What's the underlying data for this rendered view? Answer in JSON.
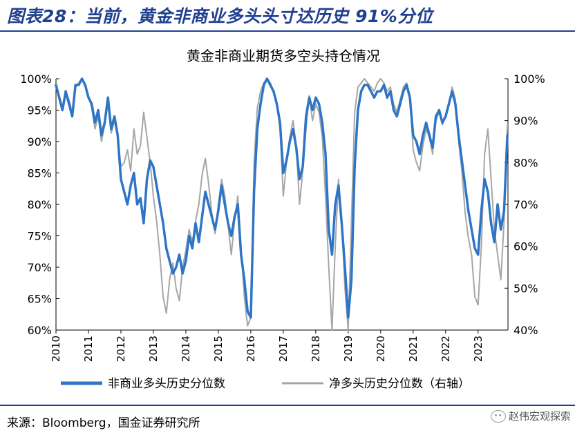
{
  "figure": {
    "title": "图表28：当前，黄金非商业多头头寸达历史 91%分位",
    "source": "来源：Bloomberg，国金证券研究所",
    "watermark": "赵伟宏观探索",
    "watermark_icon": "wechat-icon"
  },
  "chart_data": {
    "type": "line",
    "title": "黄金非商业期货多空头持仓情况",
    "xlabel": "",
    "ylabel": "",
    "x_ticks": [
      "2010",
      "2011",
      "2012",
      "2013",
      "2014",
      "2015",
      "2016",
      "2017",
      "2018",
      "2019",
      "2020",
      "2021",
      "2022",
      "2023"
    ],
    "xlim": [
      2010.0,
      2023.92
    ],
    "y_left": {
      "lim": [
        0.6,
        1.0
      ],
      "ticks": [
        "60%",
        "65%",
        "70%",
        "75%",
        "80%",
        "85%",
        "90%",
        "95%",
        "100%"
      ]
    },
    "y_right": {
      "lim": [
        0.4,
        1.0
      ],
      "ticks": [
        "40%",
        "50%",
        "60%",
        "70%",
        "80%",
        "90%",
        "100%"
      ]
    },
    "grid": false,
    "legend_position": "bottom",
    "series": [
      {
        "name": "非商业多头历史分位数",
        "axis": "left",
        "color": "#2e75c6",
        "x": [
          2010.0,
          2010.1,
          2010.2,
          2010.3,
          2010.4,
          2010.5,
          2010.6,
          2010.7,
          2010.8,
          2010.9,
          2011.0,
          2011.1,
          2011.2,
          2011.3,
          2011.4,
          2011.5,
          2011.6,
          2011.7,
          2011.8,
          2011.9,
          2012.0,
          2012.1,
          2012.2,
          2012.3,
          2012.4,
          2012.5,
          2012.6,
          2012.7,
          2012.8,
          2012.9,
          2013.0,
          2013.1,
          2013.2,
          2013.3,
          2013.4,
          2013.5,
          2013.6,
          2013.7,
          2013.8,
          2013.9,
          2014.0,
          2014.1,
          2014.2,
          2014.3,
          2014.4,
          2014.5,
          2014.6,
          2014.7,
          2014.8,
          2014.9,
          2015.0,
          2015.1,
          2015.2,
          2015.3,
          2015.4,
          2015.5,
          2015.6,
          2015.7,
          2015.8,
          2015.9,
          2016.0,
          2016.1,
          2016.2,
          2016.3,
          2016.4,
          2016.5,
          2016.6,
          2016.7,
          2016.8,
          2016.9,
          2017.0,
          2017.1,
          2017.2,
          2017.3,
          2017.4,
          2017.5,
          2017.6,
          2017.7,
          2017.8,
          2017.9,
          2018.0,
          2018.1,
          2018.2,
          2018.3,
          2018.4,
          2018.5,
          2018.6,
          2018.7,
          2018.8,
          2018.9,
          2019.0,
          2019.1,
          2019.2,
          2019.3,
          2019.4,
          2019.5,
          2019.6,
          2019.7,
          2019.8,
          2019.9,
          2020.0,
          2020.1,
          2020.2,
          2020.3,
          2020.4,
          2020.5,
          2020.6,
          2020.7,
          2020.8,
          2020.9,
          2021.0,
          2021.1,
          2021.2,
          2021.3,
          2021.4,
          2021.5,
          2021.6,
          2021.7,
          2021.8,
          2021.9,
          2022.0,
          2022.1,
          2022.2,
          2022.3,
          2022.4,
          2022.5,
          2022.6,
          2022.7,
          2022.8,
          2022.9,
          2023.0,
          2023.1,
          2023.2,
          2023.3,
          2023.4,
          2023.5,
          2023.6,
          2023.7,
          2023.8,
          2023.9
        ],
        "y": [
          0.99,
          0.97,
          0.95,
          0.98,
          0.96,
          0.94,
          0.99,
          0.99,
          1.0,
          0.99,
          0.97,
          0.96,
          0.93,
          0.95,
          0.91,
          0.93,
          0.97,
          0.92,
          0.94,
          0.91,
          0.84,
          0.82,
          0.8,
          0.83,
          0.85,
          0.8,
          0.81,
          0.77,
          0.84,
          0.87,
          0.86,
          0.83,
          0.8,
          0.77,
          0.73,
          0.71,
          0.69,
          0.7,
          0.72,
          0.69,
          0.71,
          0.75,
          0.73,
          0.77,
          0.74,
          0.78,
          0.82,
          0.8,
          0.78,
          0.76,
          0.79,
          0.83,
          0.8,
          0.77,
          0.75,
          0.78,
          0.8,
          0.72,
          0.68,
          0.63,
          0.62,
          0.82,
          0.92,
          0.96,
          0.99,
          1.0,
          0.99,
          0.98,
          0.96,
          0.93,
          0.85,
          0.87,
          0.9,
          0.92,
          0.89,
          0.84,
          0.86,
          0.94,
          0.97,
          0.95,
          0.97,
          0.96,
          0.93,
          0.88,
          0.76,
          0.72,
          0.8,
          0.83,
          0.77,
          0.7,
          0.62,
          0.68,
          0.86,
          0.95,
          0.98,
          0.99,
          0.99,
          0.98,
          0.97,
          0.98,
          0.98,
          0.99,
          0.97,
          0.98,
          0.95,
          0.94,
          0.96,
          0.98,
          0.99,
          0.97,
          0.91,
          0.9,
          0.88,
          0.91,
          0.93,
          0.91,
          0.89,
          0.94,
          0.95,
          0.93,
          0.94,
          0.96,
          0.98,
          0.96,
          0.91,
          0.87,
          0.83,
          0.79,
          0.76,
          0.73,
          0.72,
          0.79,
          0.84,
          0.82,
          0.77,
          0.74,
          0.8,
          0.76,
          0.79,
          0.91
        ]
      },
      {
        "name": "净多头历史分位数（右轴）",
        "axis": "right",
        "color": "#a6a6a6",
        "x": [
          2010.0,
          2010.1,
          2010.2,
          2010.3,
          2010.4,
          2010.5,
          2010.6,
          2010.7,
          2010.8,
          2010.9,
          2011.0,
          2011.1,
          2011.2,
          2011.3,
          2011.4,
          2011.5,
          2011.6,
          2011.7,
          2011.8,
          2011.9,
          2012.0,
          2012.1,
          2012.2,
          2012.3,
          2012.4,
          2012.5,
          2012.6,
          2012.7,
          2012.8,
          2012.9,
          2013.0,
          2013.1,
          2013.2,
          2013.3,
          2013.4,
          2013.5,
          2013.6,
          2013.7,
          2013.8,
          2013.9,
          2014.0,
          2014.1,
          2014.2,
          2014.3,
          2014.4,
          2014.5,
          2014.6,
          2014.7,
          2014.8,
          2014.9,
          2015.0,
          2015.1,
          2015.2,
          2015.3,
          2015.4,
          2015.5,
          2015.6,
          2015.7,
          2015.8,
          2015.9,
          2016.0,
          2016.1,
          2016.2,
          2016.3,
          2016.4,
          2016.5,
          2016.6,
          2016.7,
          2016.8,
          2016.9,
          2017.0,
          2017.1,
          2017.2,
          2017.3,
          2017.4,
          2017.5,
          2017.6,
          2017.7,
          2017.8,
          2017.9,
          2018.0,
          2018.1,
          2018.2,
          2018.3,
          2018.4,
          2018.5,
          2018.6,
          2018.7,
          2018.8,
          2018.9,
          2019.0,
          2019.1,
          2019.2,
          2019.3,
          2019.4,
          2019.5,
          2019.6,
          2019.7,
          2019.8,
          2019.9,
          2020.0,
          2020.1,
          2020.2,
          2020.3,
          2020.4,
          2020.5,
          2020.6,
          2020.7,
          2020.8,
          2020.9,
          2021.0,
          2021.1,
          2021.2,
          2021.3,
          2021.4,
          2021.5,
          2021.6,
          2021.7,
          2021.8,
          2021.9,
          2022.0,
          2022.1,
          2022.2,
          2022.3,
          2022.4,
          2022.5,
          2022.6,
          2022.7,
          2022.8,
          2022.9,
          2023.0,
          2023.1,
          2023.2,
          2023.3,
          2023.4,
          2023.5,
          2023.6,
          2023.7,
          2023.8,
          2023.9
        ],
        "y": [
          0.98,
          0.96,
          0.93,
          0.97,
          0.95,
          0.92,
          0.98,
          0.99,
          1.0,
          0.98,
          0.96,
          0.93,
          0.88,
          0.91,
          0.85,
          0.89,
          0.94,
          0.87,
          0.9,
          0.86,
          0.79,
          0.8,
          0.83,
          0.78,
          0.88,
          0.82,
          0.84,
          0.92,
          0.86,
          0.8,
          0.72,
          0.66,
          0.58,
          0.48,
          0.44,
          0.52,
          0.56,
          0.5,
          0.47,
          0.55,
          0.59,
          0.64,
          0.61,
          0.66,
          0.7,
          0.77,
          0.81,
          0.75,
          0.68,
          0.63,
          0.7,
          0.76,
          0.72,
          0.65,
          0.58,
          0.66,
          0.72,
          0.6,
          0.48,
          0.41,
          0.43,
          0.8,
          0.93,
          0.97,
          0.99,
          1.0,
          0.99,
          0.97,
          0.94,
          0.88,
          0.72,
          0.8,
          0.86,
          0.9,
          0.84,
          0.7,
          0.78,
          0.88,
          0.96,
          0.9,
          0.94,
          0.92,
          0.86,
          0.72,
          0.55,
          0.4,
          0.6,
          0.76,
          0.66,
          0.5,
          0.4,
          0.66,
          0.92,
          0.98,
          0.99,
          1.0,
          0.99,
          0.98,
          0.97,
          0.99,
          1.0,
          0.99,
          0.97,
          0.98,
          0.94,
          0.92,
          0.95,
          0.98,
          0.99,
          0.96,
          0.83,
          0.8,
          0.78,
          0.84,
          0.88,
          0.86,
          0.82,
          0.9,
          0.92,
          0.89,
          0.91,
          0.94,
          0.98,
          0.95,
          0.85,
          0.78,
          0.68,
          0.62,
          0.58,
          0.48,
          0.46,
          0.6,
          0.82,
          0.88,
          0.76,
          0.64,
          0.58,
          0.52,
          0.66,
          0.89
        ]
      }
    ]
  }
}
